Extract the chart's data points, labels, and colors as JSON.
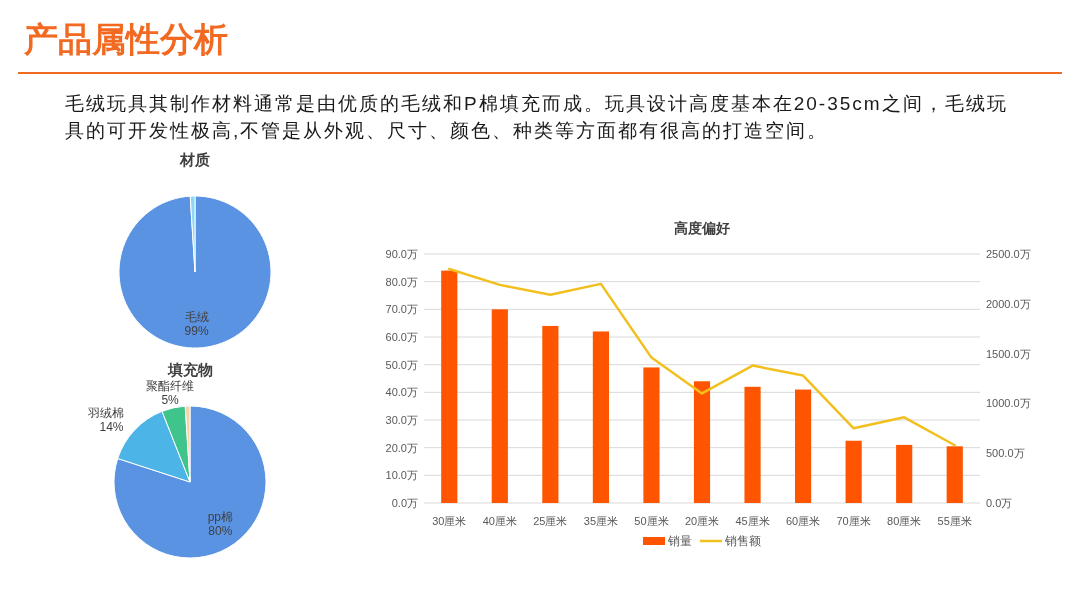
{
  "chart_data": [
    {
      "type": "other",
      "title": "产品属性分析",
      "subtitle": "毛绒玩具其制作材料通常是由优质的毛绒和P棉填充而成。玩具设计高度基本在20-35cm之间，毛绒玩具的可开发性极高,不管是从外观、尺寸、颜色、种类等方面都有很高的打造空间。"
    },
    {
      "type": "pie",
      "title": "材质",
      "categories": [
        "毛绒",
        null
      ],
      "values": [
        99,
        1
      ],
      "colors": [
        "#5b93e3",
        "#8ad8f2"
      ],
      "value_labels": [
        "99%",
        null
      ]
    },
    {
      "type": "pie",
      "title": "填充物",
      "categories": [
        "pp棉",
        "羽绒棉",
        "聚酯纤维",
        null
      ],
      "values": [
        80,
        14,
        5,
        1
      ],
      "colors": [
        "#5b93e3",
        "#4cb4e6",
        "#3fc48c",
        "#f3d3a8"
      ],
      "value_labels": [
        "80%",
        "14%",
        "5%",
        null
      ]
    },
    {
      "type": "bar",
      "title": "高度偏好",
      "categories": [
        "30厘米",
        "40厘米",
        "25厘米",
        "35厘米",
        "50厘米",
        "20厘米",
        "45厘米",
        "60厘米",
        "70厘米",
        "80厘米",
        "55厘米"
      ],
      "series": [
        {
          "name": "销量",
          "type": "bar",
          "color": "#ff5500",
          "values": [
            84,
            70,
            64,
            62,
            49,
            44,
            42,
            41,
            22.5,
            21,
            20.5
          ]
        },
        {
          "name": "销售额",
          "type": "line",
          "axis": "y2",
          "color": "#f2c01e",
          "values": [
            2350,
            2190,
            2090,
            2200,
            1460,
            1100,
            1380,
            1280,
            750,
            860,
            580
          ]
        }
      ],
      "ylim": [
        0,
        90
      ],
      "yticks": [
        {
          "value": 0,
          "label": "0.0万"
        },
        {
          "value": 10,
          "label": "10.0万"
        },
        {
          "value": 20,
          "label": "20.0万"
        },
        {
          "value": 30,
          "label": "30.0万"
        },
        {
          "value": 40,
          "label": "40.0万"
        },
        {
          "value": 50,
          "label": "50.0万"
        },
        {
          "value": 60,
          "label": "60.0万"
        },
        {
          "value": 70,
          "label": "70.0万"
        },
        {
          "value": 80,
          "label": "80.0万"
        },
        {
          "value": 90,
          "label": "90.0万"
        }
      ],
      "y2lim": [
        0,
        2500
      ],
      "y2ticks": [
        {
          "value": 0,
          "label": "0.0万"
        },
        {
          "value": 500,
          "label": "500.0万"
        },
        {
          "value": 1000,
          "label": "1000.0万"
        },
        {
          "value": 1500,
          "label": "1500.0万"
        },
        {
          "value": 2000,
          "label": "2000.0万"
        },
        {
          "value": 2500,
          "label": "2500.0万"
        }
      ],
      "grid": "y",
      "legend": "bottom"
    }
  ]
}
